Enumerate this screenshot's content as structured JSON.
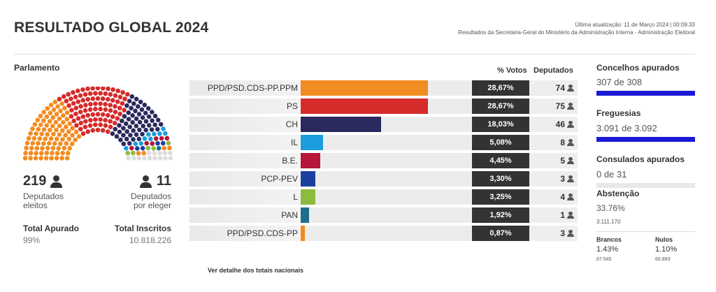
{
  "header": {
    "title": "RESULTADO GLOBAL 2024",
    "last_update": "Última atualização: 11 de Março 2024 | 00:09:33",
    "source": "Resultados da Secretaria-Geral do Ministério da Administração Interna - Administração Eleitoral"
  },
  "parliament": {
    "title": "Parlamento",
    "elected_count": "219",
    "elected_label_1": "Deputados",
    "elected_label_2": "eleitos",
    "to_elect_count": "11",
    "to_elect_label_1": "Deputados",
    "to_elect_label_2": "por eleger",
    "total_apurado_label": "Total Apurado",
    "total_apurado_value": "99%",
    "total_inscritos_label": "Total Inscritos",
    "total_inscritos_value": "10.818.226",
    "seat_groups": [
      {
        "seats": 74,
        "color": "#f28c20"
      },
      {
        "seats": 75,
        "color": "#d62b2b"
      },
      {
        "seats": 46,
        "color": "#2a2a5e"
      },
      {
        "seats": 8,
        "color": "#1a9ee0"
      },
      {
        "seats": 5,
        "color": "#b5163a"
      },
      {
        "seats": 3,
        "color": "#1a3fa0"
      },
      {
        "seats": 4,
        "color": "#8dbb3c"
      },
      {
        "seats": 1,
        "color": "#1d6e8c"
      },
      {
        "seats": 3,
        "color": "#f28c20"
      },
      {
        "seats": 11,
        "color": "#dddddd"
      }
    ]
  },
  "results": {
    "col_votes": "% Votos",
    "col_deputies": "Deputados",
    "parties": [
      {
        "name": "PPD/PSD.CDS-PP.PPM",
        "pct": "28,67%",
        "value": 28.67,
        "deputies": "74",
        "color": "#f28c20"
      },
      {
        "name": "PS",
        "pct": "28,67%",
        "value": 28.67,
        "deputies": "75",
        "color": "#d62b2b"
      },
      {
        "name": "CH",
        "pct": "18,03%",
        "value": 18.03,
        "deputies": "46",
        "color": "#2a2a5e"
      },
      {
        "name": "IL",
        "pct": "5,08%",
        "value": 5.08,
        "deputies": "8",
        "color": "#1a9ee0"
      },
      {
        "name": "B.E.",
        "pct": "4,45%",
        "value": 4.45,
        "deputies": "5",
        "color": "#b5163a"
      },
      {
        "name": "PCP-PEV",
        "pct": "3,30%",
        "value": 3.3,
        "deputies": "3",
        "color": "#1a3fa0"
      },
      {
        "name": "L",
        "pct": "3,25%",
        "value": 3.25,
        "deputies": "4",
        "color": "#8dbb3c"
      },
      {
        "name": "PAN",
        "pct": "1,92%",
        "value": 1.92,
        "deputies": "1",
        "color": "#1d6e8c"
      },
      {
        "name": "PPD/PSD.CDS-PP",
        "pct": "0,87%",
        "value": 0.87,
        "deputies": "3",
        "color": "#f28c20"
      }
    ],
    "detail_link": "Ver detalhe dos totais nacionais"
  },
  "side": {
    "concelhos_title": "Concelhos apurados",
    "concelhos_value": "307 de 308",
    "concelhos_fraction": 0.997,
    "freguesias_title": "Freguesias",
    "freguesias_value": "3.091 de 3.092",
    "freguesias_fraction": 0.9997,
    "consulados_title": "Consulados apurados",
    "consulados_value": "0 de 31",
    "consulados_fraction": 0,
    "abstencao_title": "Abstenção",
    "abstencao_pct": "33.76%",
    "abstencao_count": "3.111.170",
    "brancos_label": "Brancos",
    "brancos_pct": "1.43%",
    "brancos_count": "87.545",
    "nulos_label": "Nulos",
    "nulos_pct": "1.10%",
    "nulos_count": "66.893"
  }
}
